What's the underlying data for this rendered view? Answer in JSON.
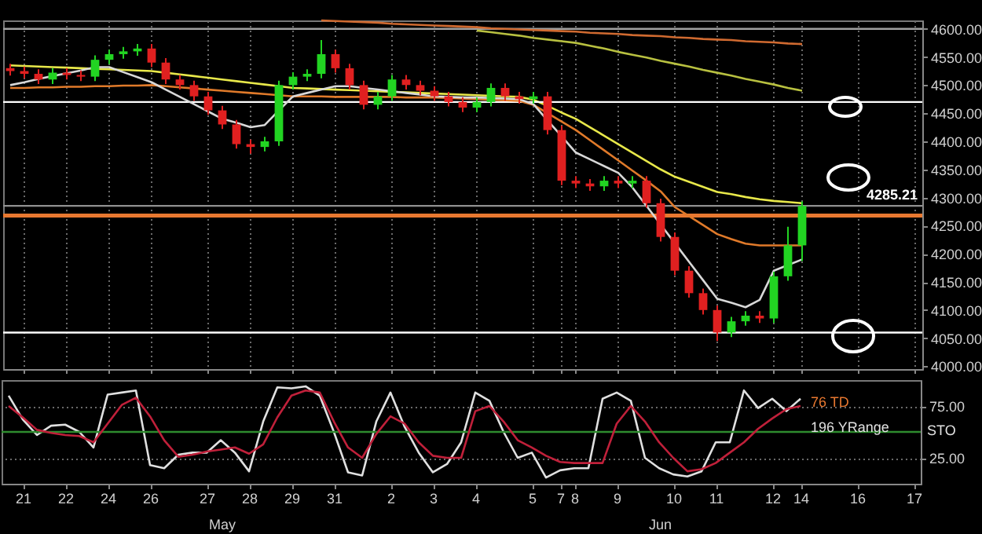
{
  "chart_data": [
    {
      "type": "candlestick",
      "categories": [
        null,
        "21",
        null,
        null,
        "22",
        null,
        null,
        "24",
        null,
        null,
        "26",
        null,
        null,
        null,
        "27",
        null,
        null,
        "28",
        null,
        null,
        "29",
        null,
        null,
        "31",
        null,
        null,
        null,
        "2",
        null,
        null,
        "3",
        null,
        null,
        "4",
        null,
        null,
        null,
        "5",
        null,
        "7",
        "8",
        null,
        null,
        "9",
        null,
        null,
        null,
        "10",
        null,
        null,
        "11",
        null,
        null,
        null,
        "12",
        null,
        "14",
        null,
        null,
        null,
        "16",
        null,
        null,
        null,
        "17"
      ],
      "ohlc": [
        [
          4530,
          4538,
          4517,
          4525
        ],
        [
          4525,
          4533,
          4512,
          4520
        ],
        [
          4520,
          4528,
          4502,
          4510
        ],
        [
          4510,
          4530,
          4502,
          4522
        ],
        [
          4522,
          4530,
          4510,
          4518
        ],
        [
          4518,
          4526,
          4507,
          4515
        ],
        [
          4515,
          4553,
          4507,
          4545
        ],
        [
          4545,
          4563,
          4537,
          4555
        ],
        [
          4555,
          4568,
          4547,
          4560
        ],
        [
          4560,
          4573,
          4552,
          4565
        ],
        [
          4565,
          4573,
          4532,
          4540
        ],
        [
          4540,
          4548,
          4502,
          4510
        ],
        [
          4510,
          4518,
          4492,
          4500
        ],
        [
          4500,
          4508,
          4472,
          4480
        ],
        [
          4480,
          4488,
          4447,
          4455
        ],
        [
          4455,
          4463,
          4422,
          4430
        ],
        [
          4430,
          4438,
          4387,
          4395
        ],
        [
          4395,
          4403,
          4378,
          4390
        ],
        [
          4390,
          4408,
          4382,
          4400
        ],
        [
          4400,
          4508,
          4392,
          4500
        ],
        [
          4500,
          4523,
          4492,
          4515
        ],
        [
          4515,
          4528,
          4507,
          4520
        ],
        [
          4520,
          4580,
          4512,
          4555
        ],
        [
          4555,
          4563,
          4522,
          4530
        ],
        [
          4530,
          4538,
          4492,
          4500
        ],
        [
          4500,
          4508,
          4457,
          4465
        ],
        [
          4465,
          4488,
          4457,
          4480
        ],
        [
          4480,
          4518,
          4472,
          4510
        ],
        [
          4510,
          4518,
          4492,
          4500
        ],
        [
          4500,
          4508,
          4482,
          4490
        ],
        [
          4490,
          4498,
          4472,
          4480
        ],
        [
          4480,
          4488,
          4462,
          4470
        ],
        [
          4470,
          4478,
          4452,
          4460
        ],
        [
          4460,
          4478,
          4452,
          4470
        ],
        [
          4470,
          4503,
          4462,
          4495
        ],
        [
          4495,
          4503,
          4472,
          4480
        ],
        [
          4480,
          4488,
          4467,
          4475
        ],
        [
          4475,
          4488,
          4467,
          4480
        ],
        [
          4480,
          4488,
          4412,
          4420
        ],
        [
          4420,
          4428,
          4322,
          4330
        ],
        [
          4330,
          4338,
          4317,
          4325
        ],
        [
          4325,
          4333,
          4312,
          4320
        ],
        [
          4320,
          4338,
          4312,
          4330
        ],
        [
          4330,
          4338,
          4317,
          4325
        ],
        [
          4325,
          4338,
          4317,
          4330
        ],
        [
          4330,
          4338,
          4282,
          4290
        ],
        [
          4290,
          4298,
          4222,
          4230
        ],
        [
          4230,
          4238,
          4162,
          4170
        ],
        [
          4170,
          4178,
          4122,
          4130
        ],
        [
          4130,
          4138,
          4092,
          4100
        ],
        [
          4100,
          4108,
          4045,
          4060
        ],
        [
          4060,
          4088,
          4052,
          4080
        ],
        [
          4080,
          4098,
          4072,
          4090
        ],
        [
          4090,
          4098,
          4077,
          4085
        ],
        [
          4085,
          4168,
          4077,
          4160
        ],
        [
          4160,
          4248,
          4152,
          4215
        ],
        [
          4215,
          4293,
          4187,
          4285
        ],
        null,
        null,
        null,
        null,
        null,
        null,
        null,
        null
      ],
      "series": [
        {
          "type": "line",
          "color": "#e8e84a",
          "values": [
            4535,
            4534,
            4533,
            4532,
            4531,
            4530,
            4529,
            4528,
            4527,
            4526,
            4525,
            4522,
            4519,
            4516,
            4513,
            4510,
            4507,
            4504,
            4501,
            4498,
            4495,
            4494,
            4493,
            4492,
            4491,
            4490,
            4489,
            4488,
            4487,
            4486,
            4485,
            4484,
            4483,
            4482,
            4481,
            4480,
            4479,
            4474,
            4463,
            4451,
            4440,
            4425,
            4410,
            4395,
            4380,
            4365,
            4350,
            4337,
            4328,
            4319,
            4310,
            4306,
            4301,
            4297,
            4294,
            4292,
            4290,
            null,
            null,
            null,
            null,
            null,
            null,
            null,
            null
          ]
        },
        {
          "type": "line",
          "color": "#e07a2a",
          "values": [
            4495,
            4495,
            4496,
            4496,
            4497,
            4497,
            4498,
            4498,
            4499,
            4499,
            4500,
            4498,
            4496,
            4494,
            4492,
            4490,
            4488,
            4486,
            4484,
            4482,
            4480,
            4480,
            4480,
            4479,
            4479,
            4479,
            4479,
            4479,
            4478,
            4478,
            4478,
            4477,
            4476,
            4475,
            4474,
            4473,
            4472,
            4465,
            4450,
            4435,
            4420,
            4402,
            4384,
            4366,
            4348,
            4330,
            4311,
            4283,
            4267,
            4251,
            4235,
            4226,
            4218,
            4215,
            4215,
            4215,
            4215,
            null,
            null,
            null,
            null,
            null,
            null,
            null,
            null
          ]
        },
        {
          "type": "line",
          "color": "#d06a30",
          "values": [
            null,
            null,
            null,
            null,
            null,
            null,
            null,
            null,
            null,
            null,
            null,
            null,
            null,
            null,
            null,
            null,
            null,
            null,
            null,
            null,
            null,
            null,
            4615,
            4614,
            4613,
            4612,
            4611,
            4609,
            4608,
            4607,
            4606,
            4605,
            4604,
            4603,
            4601,
            4600,
            4599,
            4598,
            4597,
            4596,
            4595,
            4593,
            4592,
            4591,
            4589,
            4588,
            4587,
            4585,
            4584,
            4582,
            4581,
            4580,
            4578,
            4577,
            4576,
            4574,
            4573,
            null,
            null,
            null,
            null,
            null,
            null,
            null,
            null
          ]
        },
        {
          "type": "line",
          "color": "#b8c040",
          "values": [
            null,
            null,
            null,
            null,
            null,
            null,
            null,
            null,
            null,
            null,
            null,
            null,
            null,
            null,
            null,
            null,
            null,
            null,
            null,
            null,
            null,
            null,
            null,
            null,
            null,
            null,
            null,
            null,
            null,
            null,
            null,
            null,
            null,
            4597,
            4594,
            4591,
            4588,
            4584,
            4581,
            4578,
            4575,
            4570,
            4565,
            4559,
            4554,
            4549,
            4543,
            4538,
            4533,
            4527,
            4522,
            4517,
            4511,
            4506,
            4501,
            4495,
            4490,
            null,
            null,
            null,
            null,
            null,
            null,
            null,
            null
          ]
        },
        {
          "type": "line",
          "color": "#d8d8d8",
          "values": [
            4500,
            4505,
            4511,
            4516,
            4521,
            4526,
            4532,
            4532,
            4523,
            4514,
            4505,
            4492,
            4479,
            4466,
            4453,
            4440,
            4433,
            4425,
            4429,
            4455,
            4480,
            4486,
            4492,
            4498,
            4498,
            4495,
            4492,
            4489,
            4486,
            4483,
            4480,
            4479,
            4478,
            4478,
            4477,
            4476,
            4475,
            4466,
            4437,
            4409,
            4380,
            4368,
            4356,
            4344,
            4318,
            4285,
            4252,
            4219,
            4186,
            4153,
            4120,
            4113,
            4105,
            4118,
            4170,
            4180,
            4190,
            null,
            null,
            null,
            null,
            null,
            null,
            null,
            null
          ]
        }
      ],
      "ylim": [
        3995,
        4615
      ],
      "yticks": [
        {
          "value": 4000,
          "label": "4000.00"
        },
        {
          "value": 4050,
          "label": "4050.00"
        },
        {
          "value": 4100,
          "label": "4100.00"
        },
        {
          "value": 4150,
          "label": "4150.00"
        },
        {
          "value": 4200,
          "label": "4200.00"
        },
        {
          "value": 4250,
          "label": "4250.00"
        },
        {
          "value": 4300,
          "label": "4300.00"
        },
        {
          "value": 4350,
          "label": "4350.00"
        },
        {
          "value": 4400,
          "label": "4400.00"
        },
        {
          "value": 4450,
          "label": "4450.00"
        },
        {
          "value": 4500,
          "label": "4500.00"
        },
        {
          "value": 4550,
          "label": "4550.00"
        },
        {
          "value": 4600,
          "label": "4600.00"
        }
      ],
      "ref_lines": [
        {
          "axis": "y",
          "value": 4600,
          "color": "#a0a0a0"
        },
        {
          "axis": "y",
          "value": 4470,
          "color": "#ffffff"
        },
        {
          "axis": "y",
          "value": 4285.21,
          "color": "#909090",
          "label": "4285.21"
        },
        {
          "axis": "y",
          "value": 4268,
          "color": "#e87830"
        },
        {
          "axis": "y",
          "value": 4060,
          "color": "#ffffff"
        }
      ],
      "grid": "x",
      "tick_labels": "y"
    },
    {
      "type": "line",
      "categories": [
        null,
        "21",
        null,
        null,
        "22",
        null,
        null,
        "24",
        null,
        null,
        "26",
        null,
        null,
        null,
        "27",
        null,
        null,
        "28",
        null,
        null,
        "29",
        null,
        null,
        "31",
        null,
        null,
        null,
        "2",
        null,
        null,
        "3",
        null,
        null,
        "4",
        null,
        null,
        null,
        "5",
        null,
        "7",
        "8",
        null,
        null,
        "9",
        null,
        null,
        null,
        "10",
        null,
        null,
        "11",
        null,
        null,
        null,
        "12",
        null,
        "14",
        null,
        null,
        null,
        "16",
        null,
        null,
        null,
        "17"
      ],
      "series": [
        {
          "color": "#e0e0e0",
          "values": [
            85,
            62,
            47,
            56,
            57,
            50,
            35,
            86,
            88,
            90,
            18,
            15,
            28,
            30,
            30,
            42,
            30,
            12,
            60,
            93,
            92,
            94,
            85,
            50,
            11,
            8,
            60,
            88,
            55,
            30,
            11,
            19,
            40,
            88,
            80,
            50,
            25,
            30,
            6,
            13,
            15,
            15,
            82,
            88,
            80,
            25,
            15,
            9,
            7,
            12,
            40,
            40,
            90,
            73,
            82,
            70,
            82,
            null,
            null,
            null,
            null,
            null,
            null,
            null,
            null
          ]
        },
        {
          "color": "#c0203a",
          "values": [
            75,
            64,
            52,
            49,
            47,
            46,
            40,
            58,
            76,
            83,
            65,
            42,
            26,
            28,
            31,
            33,
            35,
            29,
            38,
            64,
            85,
            90,
            88,
            60,
            35,
            25,
            48,
            65,
            58,
            40,
            27,
            25,
            25,
            70,
            75,
            60,
            42,
            35,
            27,
            21,
            20,
            20,
            20,
            58,
            75,
            60,
            40,
            25,
            12,
            14,
            20,
            30,
            40,
            53,
            63,
            72,
            75,
            null,
            null,
            null,
            null,
            null,
            null,
            null,
            null
          ]
        }
      ],
      "ylim": [
        0,
        100
      ],
      "yticks": [
        {
          "value": 25,
          "label": "25.00"
        },
        {
          "value": 75,
          "label": "75.00"
        }
      ],
      "ref_lines": [
        {
          "axis": "y",
          "value": 50,
          "color": "#2e8b2e"
        }
      ],
      "grid": "y",
      "annotations": [
        "76 TD",
        "196 YRange",
        "STO",
        "May",
        "Jun"
      ]
    }
  ]
}
